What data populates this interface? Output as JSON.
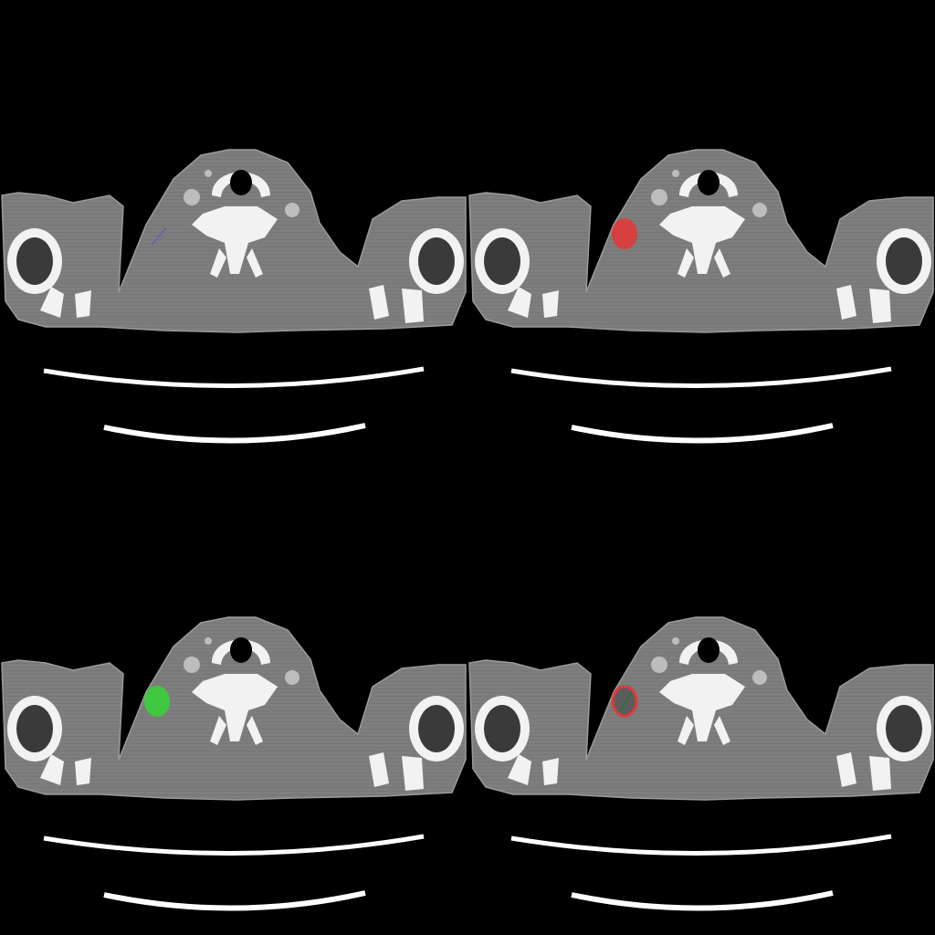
{
  "layout": "2x2 grid",
  "panels": [
    {
      "id": "original",
      "overlay": "line",
      "overlay_color": "#5555cc"
    },
    {
      "id": "red-mask",
      "overlay": "mask",
      "overlay_color": "#e03a3a"
    },
    {
      "id": "green-mask",
      "overlay": "mask",
      "overlay_color": "#3ad13a"
    },
    {
      "id": "contour",
      "overlay": "contour",
      "overlay_color": "#e03a3a",
      "line_color": "#1a7a3a"
    }
  ],
  "colors": {
    "background": "#000000",
    "tissue": "#7e7e7e",
    "tissue_dark": "#666666",
    "bone": "#f2f2f2",
    "vessel": "#bdbdbd",
    "airway": "#000000",
    "table": "#ffffff"
  }
}
